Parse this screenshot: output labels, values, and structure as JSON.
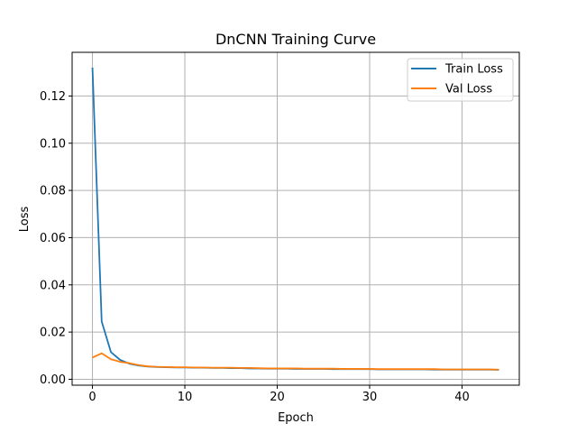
{
  "chart_data": {
    "type": "line",
    "title": "DnCNN Training Curve",
    "xlabel": "Epoch",
    "ylabel": "Loss",
    "xlim": [
      -2.2,
      46.2
    ],
    "ylim": [
      -0.0025,
      0.1385
    ],
    "xticks": [
      0,
      10,
      20,
      30,
      40
    ],
    "yticks": [
      0.0,
      0.02,
      0.04,
      0.06,
      0.08,
      0.1,
      0.12
    ],
    "xtick_labels": [
      "0",
      "10",
      "20",
      "30",
      "40"
    ],
    "ytick_labels": [
      "0.00",
      "0.02",
      "0.04",
      "0.06",
      "0.08",
      "0.10",
      "0.12"
    ],
    "grid": true,
    "legend_position": "top-right",
    "series": [
      {
        "name": "Train Loss",
        "color": "#1f77b4",
        "x": [
          0,
          1,
          2,
          3,
          4,
          5,
          6,
          7,
          8,
          9,
          10,
          11,
          12,
          13,
          14,
          15,
          16,
          17,
          18,
          19,
          20,
          21,
          22,
          23,
          24,
          25,
          26,
          27,
          28,
          29,
          30,
          31,
          32,
          33,
          34,
          35,
          36,
          37,
          38,
          39,
          40,
          41,
          42,
          43,
          44
        ],
        "y": [
          0.132,
          0.0245,
          0.0115,
          0.0082,
          0.0066,
          0.0058,
          0.0054,
          0.0052,
          0.0051,
          0.005,
          0.005,
          0.0049,
          0.0049,
          0.0048,
          0.0048,
          0.0047,
          0.0047,
          0.0046,
          0.0046,
          0.0045,
          0.0045,
          0.0045,
          0.0044,
          0.0044,
          0.0044,
          0.0044,
          0.0043,
          0.0043,
          0.0043,
          0.0043,
          0.0043,
          0.0042,
          0.0042,
          0.0042,
          0.0042,
          0.0042,
          0.0042,
          0.0041,
          0.0041,
          0.0041,
          0.0041,
          0.0041,
          0.0041,
          0.0041,
          0.004
        ]
      },
      {
        "name": "Val Loss",
        "color": "#ff7f0e",
        "x": [
          0,
          1,
          2,
          3,
          4,
          5,
          6,
          7,
          8,
          9,
          10,
          11,
          12,
          13,
          14,
          15,
          16,
          17,
          18,
          19,
          20,
          21,
          22,
          23,
          24,
          25,
          26,
          27,
          28,
          29,
          30,
          31,
          32,
          33,
          34,
          35,
          36,
          37,
          38,
          39,
          40,
          41,
          42,
          43,
          44
        ],
        "y": [
          0.0092,
          0.011,
          0.0085,
          0.0074,
          0.0068,
          0.006,
          0.0055,
          0.0053,
          0.0052,
          0.0051,
          0.0051,
          0.005,
          0.005,
          0.0049,
          0.0049,
          0.0049,
          0.0048,
          0.0048,
          0.0047,
          0.0046,
          0.0046,
          0.0046,
          0.0046,
          0.0045,
          0.0045,
          0.0045,
          0.0045,
          0.0044,
          0.0044,
          0.0044,
          0.0044,
          0.0043,
          0.0043,
          0.0043,
          0.0043,
          0.0043,
          0.0043,
          0.0043,
          0.0042,
          0.0042,
          0.0042,
          0.0042,
          0.0042,
          0.0042,
          0.0041
        ]
      }
    ]
  }
}
